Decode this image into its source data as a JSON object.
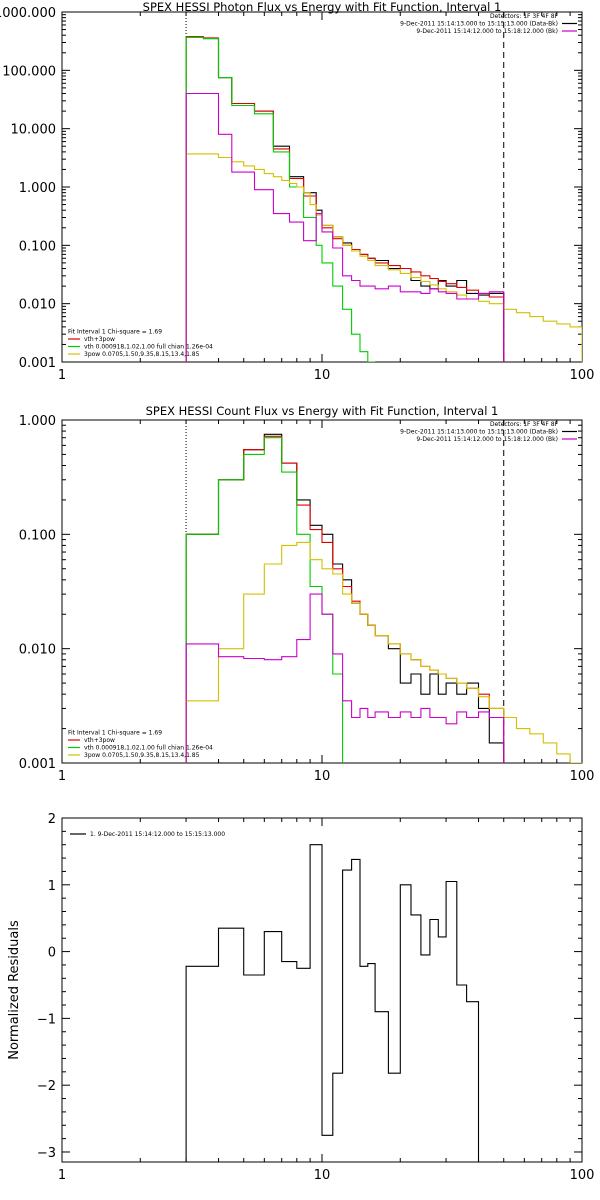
{
  "chart_data": [
    {
      "type": "line",
      "title": "SPEX HESSI Photon Flux vs Energy with Fit Function, Interval 1",
      "xscale": "log",
      "yscale": "log",
      "xlim": [
        1,
        100
      ],
      "ylim": [
        0.001,
        1000
      ],
      "xticks": [
        {
          "v": 1,
          "label": "1"
        },
        {
          "v": 10,
          "label": "10"
        },
        {
          "v": 100,
          "label": "100"
        }
      ],
      "yticks": [
        {
          "v": 0.001,
          "label": "0.001"
        },
        {
          "v": 0.01,
          "label": "0.010"
        },
        {
          "v": 0.1,
          "label": "0.100"
        },
        {
          "v": 1,
          "label": "1.000"
        },
        {
          "v": 10,
          "label": "10.000"
        },
        {
          "v": 100,
          "label": "100.000"
        },
        {
          "v": 1000,
          "label": "1000.000"
        }
      ],
      "legend_top": [
        {
          "text": "Detectors: 1F 3F 4F 8F",
          "color": null
        },
        {
          "text": "9-Dec-2011 15:14:13.000 to 15:15:13.000 (Data-Bk)",
          "color": "#000000"
        },
        {
          "text": "9-Dec-2011 15:14:12.000 to 15:18:12.000 (Bk)",
          "color": "#cc00cc"
        }
      ],
      "legend_top_placement": "top-right",
      "legend_bottom": [
        {
          "text": "Fit Interval 1    Chi-square = 1.69",
          "color": null
        },
        {
          "text": "vth+3pow",
          "color": "#e00000"
        },
        {
          "text": "vth 0.000918,1.02,1.00   full chian 1.26e-04",
          "color": "#00cc00"
        },
        {
          "text": "3pow 0.0705,1.50,9.35,8.15,13.4,1.85",
          "color": "#d4c000"
        }
      ],
      "legend_bottom_placement": "bottom-left",
      "vlines": [
        {
          "x": 3.0,
          "style": "dotted"
        },
        {
          "x": 50,
          "style": "dashed"
        }
      ],
      "series": [
        {
          "name": "9-Dec-2011 15:14:13.000 to 15:15:13.000 (Data-Bk)",
          "color": "#000000",
          "edges": [
            3.0,
            3.5,
            4.0,
            4.5,
            5.0,
            5.5,
            6.0,
            6.5,
            7.0,
            7.5,
            8.0,
            8.5,
            9.0,
            9.5,
            10,
            11,
            12,
            13,
            14,
            15,
            16,
            18,
            20,
            22,
            24,
            26,
            28,
            30,
            33,
            36,
            40,
            44,
            50
          ],
          "values": [
            370,
            350,
            75,
            27,
            27,
            20,
            20,
            5.0,
            5.0,
            1.5,
            1.5,
            0.8,
            0.8,
            0.4,
            0.22,
            0.14,
            0.11,
            0.085,
            0.07,
            0.06,
            0.055,
            0.04,
            0.04,
            0.025,
            0.02,
            0.018,
            0.025,
            0.02,
            0.025,
            0.015,
            0.014,
            0.015
          ]
        },
        {
          "name": "vth+3pow",
          "color": "#e00000",
          "edges": [
            3.0,
            3.5,
            4.0,
            4.5,
            5.0,
            5.5,
            6.0,
            6.5,
            7.0,
            7.5,
            8.0,
            8.5,
            9.0,
            9.5,
            10,
            11,
            12,
            13,
            14,
            15,
            16,
            18,
            20,
            22,
            24,
            26,
            28,
            30,
            33,
            36,
            40,
            44,
            50
          ],
          "values": [
            380,
            360,
            75,
            27,
            27,
            20,
            20,
            4.5,
            4.5,
            1.4,
            1.4,
            0.7,
            0.7,
            0.35,
            0.2,
            0.13,
            0.1,
            0.085,
            0.07,
            0.06,
            0.05,
            0.045,
            0.04,
            0.035,
            0.03,
            0.027,
            0.024,
            0.022,
            0.019,
            0.017,
            0.015,
            0.013
          ]
        },
        {
          "name": "vth 0.000918,1.02,1.00   full chian 1.26e-04",
          "color": "#00cc00",
          "edges": [
            3.0,
            3.5,
            4.0,
            4.5,
            5.0,
            5.5,
            6.0,
            6.5,
            7.0,
            7.5,
            8.0,
            8.5,
            9.0,
            9.5,
            10,
            11,
            12,
            13,
            14,
            15,
            16
          ],
          "values": [
            370,
            350,
            75,
            25,
            25,
            18,
            18,
            4.0,
            4.0,
            1.0,
            1.0,
            0.3,
            0.3,
            0.1,
            0.05,
            0.02,
            0.008,
            0.003,
            0.0015,
            0.001
          ]
        },
        {
          "name": "3pow 0.0705,1.50,9.35,8.15,13.4,1.85",
          "color": "#d4c000",
          "edges": [
            3.0,
            3.5,
            4.0,
            4.5,
            5.0,
            5.5,
            6.0,
            6.5,
            7.0,
            7.5,
            8.0,
            8.5,
            9.0,
            9.5,
            10,
            11,
            12,
            13,
            14,
            15,
            16,
            18,
            20,
            22,
            24,
            26,
            28,
            30,
            33,
            36,
            40,
            44,
            50,
            56,
            63,
            71,
            80,
            90,
            100
          ],
          "values": [
            3.7,
            3.7,
            3.2,
            2.7,
            2.3,
            2.0,
            1.7,
            1.5,
            1.3,
            1.15,
            1.0,
            0.8,
            0.5,
            0.33,
            0.22,
            0.14,
            0.1,
            0.08,
            0.065,
            0.055,
            0.045,
            0.038,
            0.033,
            0.028,
            0.024,
            0.021,
            0.018,
            0.016,
            0.014,
            0.012,
            0.011,
            0.01,
            0.008,
            0.007,
            0.006,
            0.005,
            0.0045,
            0.004
          ]
        },
        {
          "name": "9-Dec-2011 15:14:12.000 to 15:18:12.000 (Bk)",
          "color": "#cc00cc",
          "edges": [
            3.0,
            3.5,
            4.0,
            4.5,
            5.0,
            5.5,
            6.0,
            6.5,
            7.0,
            7.5,
            8.0,
            8.5,
            9.0,
            9.5,
            10,
            11,
            12,
            13,
            14,
            15,
            16,
            18,
            20,
            22,
            24,
            26,
            28,
            30,
            33,
            36,
            40,
            44,
            50
          ],
          "values": [
            40,
            40,
            8,
            1.8,
            1.8,
            0.9,
            0.9,
            0.35,
            0.35,
            0.25,
            0.25,
            0.12,
            0.12,
            0.35,
            0.17,
            0.09,
            0.03,
            0.025,
            0.02,
            0.02,
            0.018,
            0.02,
            0.016,
            0.016,
            0.015,
            0.018,
            0.016,
            0.015,
            0.012,
            0.012,
            0.015,
            0.016
          ]
        }
      ]
    },
    {
      "type": "line",
      "title": "SPEX HESSI Count Flux vs Energy with Fit Function, Interval 1",
      "xscale": "log",
      "yscale": "log",
      "xlim": [
        1,
        100
      ],
      "ylim": [
        0.001,
        1
      ],
      "xticks": [
        {
          "v": 1,
          "label": "1"
        },
        {
          "v": 10,
          "label": "10"
        },
        {
          "v": 100,
          "label": "100"
        }
      ],
      "yticks": [
        {
          "v": 0.001,
          "label": "0.001"
        },
        {
          "v": 0.01,
          "label": "0.010"
        },
        {
          "v": 0.1,
          "label": "0.100"
        },
        {
          "v": 1,
          "label": "1.000"
        }
      ],
      "legend_top": [
        {
          "text": "Detectors: 1F 3F 4F 8F",
          "color": null
        },
        {
          "text": "9-Dec-2011 15:14:13.000 to 15:15:13.000 (Data-Bk)",
          "color": "#000000"
        },
        {
          "text": "9-Dec-2011 15:14:12.000 to 15:18:12.000 (Bk)",
          "color": "#cc00cc"
        }
      ],
      "legend_top_placement": "top-right",
      "legend_bottom": [
        {
          "text": "Fit Interval 1    Chi-square = 1.69",
          "color": null
        },
        {
          "text": "vth+3pow",
          "color": "#e00000"
        },
        {
          "text": "vth 0.000918,1.02,1.00   full chian 1.26e-04",
          "color": "#00cc00"
        },
        {
          "text": "3pow 0.0705,1.50,9.35,8.15,13.4,1.85",
          "color": "#d4c000"
        }
      ],
      "legend_bottom_placement": "bottom-left",
      "vlines": [
        {
          "x": 3.0,
          "style": "dotted"
        },
        {
          "x": 50,
          "style": "dashed"
        }
      ],
      "series": [
        {
          "name": "9-Dec-2011 15:14:13.000 to 15:15:13.000 (Data-Bk)",
          "color": "#000000",
          "edges": [
            3.0,
            3.5,
            4.0,
            4.5,
            5.0,
            5.5,
            6.0,
            6.5,
            7.0,
            7.5,
            8.0,
            8.5,
            9.0,
            9.5,
            10,
            11,
            12,
            13,
            14,
            15,
            16,
            18,
            20,
            22,
            24,
            26,
            28,
            30,
            33,
            36,
            40,
            44,
            50
          ],
          "values": [
            0.1,
            0.1,
            0.3,
            0.3,
            0.55,
            0.55,
            0.75,
            0.75,
            0.42,
            0.42,
            0.2,
            0.2,
            0.12,
            0.12,
            0.1,
            0.055,
            0.04,
            0.025,
            0.02,
            0.016,
            0.013,
            0.01,
            0.005,
            0.006,
            0.004,
            0.006,
            0.004,
            0.005,
            0.004,
            0.005,
            0.003,
            0.0015
          ]
        },
        {
          "name": "vth+3pow",
          "color": "#e00000",
          "edges": [
            3.0,
            3.5,
            4.0,
            4.5,
            5.0,
            5.5,
            6.0,
            6.5,
            7.0,
            7.5,
            8.0,
            8.5,
            9.0,
            9.5,
            10,
            11,
            12,
            13,
            14,
            15,
            16,
            18,
            20,
            22,
            24,
            26,
            28,
            30,
            33,
            36,
            40,
            44,
            50
          ],
          "values": [
            0.1,
            0.1,
            0.3,
            0.3,
            0.55,
            0.55,
            0.72,
            0.72,
            0.42,
            0.42,
            0.18,
            0.18,
            0.11,
            0.11,
            0.085,
            0.05,
            0.035,
            0.026,
            0.02,
            0.016,
            0.013,
            0.011,
            0.009,
            0.008,
            0.007,
            0.0065,
            0.006,
            0.0055,
            0.005,
            0.0045,
            0.004,
            0.003
          ]
        },
        {
          "name": "vth 0.000918,1.02,1.00   full chian 1.26e-04",
          "color": "#00cc00",
          "edges": [
            3.0,
            3.5,
            4.0,
            4.5,
            5.0,
            5.5,
            6.0,
            6.5,
            7.0,
            7.5,
            8.0,
            8.5,
            9.0,
            9.5,
            10,
            11,
            12
          ],
          "values": [
            0.1,
            0.1,
            0.3,
            0.3,
            0.5,
            0.5,
            0.7,
            0.7,
            0.35,
            0.35,
            0.1,
            0.1,
            0.035,
            0.035,
            0.02,
            0.006
          ]
        },
        {
          "name": "3pow 0.0705,1.50,9.35,8.15,13.4,1.85",
          "color": "#d4c000",
          "edges": [
            3.0,
            3.5,
            4.0,
            4.5,
            5.0,
            5.5,
            6.0,
            6.5,
            7.0,
            7.5,
            8.0,
            8.5,
            9.0,
            9.5,
            10,
            11,
            12,
            13,
            14,
            15,
            16,
            18,
            20,
            22,
            24,
            26,
            28,
            30,
            33,
            36,
            40,
            44,
            50,
            56,
            63,
            71,
            80,
            90,
            100
          ],
          "values": [
            0.0035,
            0.0035,
            0.01,
            0.01,
            0.03,
            0.03,
            0.055,
            0.055,
            0.08,
            0.08,
            0.085,
            0.085,
            0.06,
            0.06,
            0.05,
            0.045,
            0.03,
            0.025,
            0.02,
            0.016,
            0.013,
            0.011,
            0.009,
            0.008,
            0.007,
            0.0065,
            0.006,
            0.0055,
            0.005,
            0.0045,
            0.0038,
            0.003,
            0.0025,
            0.002,
            0.0018,
            0.0015,
            0.0012,
            0.001
          ]
        },
        {
          "name": "9-Dec-2011 15:14:12.000 to 15:18:12.000 (Bk)",
          "color": "#cc00cc",
          "edges": [
            3.0,
            3.5,
            4.0,
            4.5,
            5.0,
            5.5,
            6.0,
            6.5,
            7.0,
            7.5,
            8.0,
            8.5,
            9.0,
            9.5,
            10,
            11,
            12,
            13,
            14,
            15,
            16,
            18,
            20,
            22,
            24,
            26,
            28,
            30,
            33,
            36,
            40,
            44,
            50
          ],
          "values": [
            0.011,
            0.011,
            0.0085,
            0.0085,
            0.0082,
            0.0082,
            0.008,
            0.008,
            0.0085,
            0.0085,
            0.012,
            0.012,
            0.03,
            0.03,
            0.02,
            0.009,
            0.0035,
            0.0025,
            0.003,
            0.0025,
            0.0028,
            0.0025,
            0.0028,
            0.0025,
            0.003,
            0.0025,
            0.0025,
            0.0022,
            0.0028,
            0.0025,
            0.0028,
            0.0025
          ]
        }
      ]
    },
    {
      "type": "line",
      "title": "",
      "xscale": "log",
      "yscale": "linear",
      "xlim": [
        1,
        100
      ],
      "ylim": [
        -3.15,
        2
      ],
      "ylabel": "Normalized Residuals",
      "xticks": [
        {
          "v": 1,
          "label": "1"
        },
        {
          "v": 10,
          "label": "10"
        },
        {
          "v": 100,
          "label": "100"
        }
      ],
      "yticks": [
        {
          "v": -3,
          "label": "−3"
        },
        {
          "v": -2,
          "label": "−2"
        },
        {
          "v": -1,
          "label": "−1"
        },
        {
          "v": 0,
          "label": "0"
        },
        {
          "v": 1,
          "label": "1"
        },
        {
          "v": 2,
          "label": "2"
        }
      ],
      "legend_top": [
        {
          "text": "1.  9-Dec-2011 15:14:12.000 to 15:15:13.000",
          "color": "#000000"
        }
      ],
      "legend_top_placement": "top-left",
      "series": [
        {
          "name": "1.  9-Dec-2011 15:14:12.000 to 15:15:13.000",
          "color": "#000000",
          "edges": [
            3.0,
            3.5,
            4.0,
            4.5,
            5.0,
            5.5,
            6.0,
            6.5,
            7.0,
            7.5,
            8.0,
            8.5,
            9.0,
            9.5,
            10,
            11,
            12,
            13,
            14,
            15,
            16,
            18,
            20,
            22,
            24,
            26,
            28,
            30,
            33,
            36,
            40,
            44,
            50
          ],
          "values": [
            -0.22,
            -0.22,
            0.35,
            0.35,
            -0.35,
            -0.35,
            0.3,
            0.3,
            -0.15,
            -0.15,
            -0.25,
            -0.25,
            1.6,
            1.6,
            -2.75,
            -1.82,
            1.22,
            1.38,
            -0.22,
            -0.18,
            -0.9,
            -1.82,
            1.0,
            0.55,
            -0.05,
            0.48,
            0.22,
            1.05,
            -0.5,
            -0.75,
            -3.15,
            -3.15
          ]
        }
      ]
    }
  ]
}
